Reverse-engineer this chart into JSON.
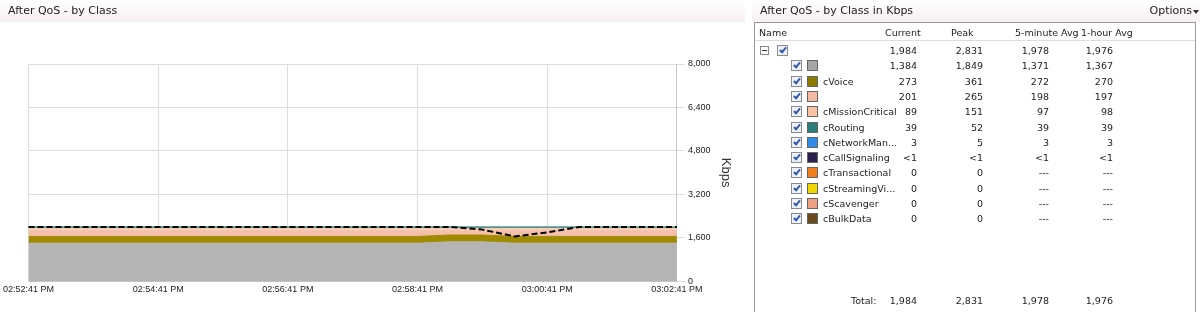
{
  "chart_data": [
    {
      "type": "area",
      "title": "After QoS - by Class",
      "ylabel": "Kbps",
      "stacked": true,
      "grid": true,
      "legend": false,
      "marker": "none",
      "categories": [
        "02:52:41 PM",
        null,
        null,
        null,
        "02:54:41 PM",
        null,
        null,
        null,
        "02:56:41 PM",
        null,
        null,
        null,
        "02:58:41 PM",
        null,
        null,
        null,
        "03:00:41 PM",
        null,
        null,
        null,
        "03:02:41 PM"
      ],
      "ylim": [
        0,
        8000
      ],
      "yticks": [
        {
          "value": 0,
          "label": "0"
        },
        {
          "value": 1600,
          "label": "1,600"
        },
        {
          "value": 3200,
          "label": "3,200"
        },
        {
          "value": 4800,
          "label": "4,800"
        },
        {
          "value": 6400,
          "label": "6,400"
        },
        {
          "value": 8000,
          "label": "8,000"
        }
      ],
      "series": [
        {
          "color": "#b4b4b4",
          "values": [
            1400,
            1400,
            1400,
            1400,
            1400,
            1400,
            1400,
            1400,
            1400,
            1400,
            1400,
            1400,
            1400,
            1450,
            1450,
            1400,
            1400,
            1400,
            1400,
            1400,
            1400
          ]
        },
        {
          "color": "#a08a00",
          "values": [
            250,
            250,
            250,
            250,
            250,
            250,
            250,
            250,
            250,
            250,
            250,
            250,
            250,
            250,
            250,
            250,
            250,
            250,
            250,
            250,
            250
          ]
        },
        {
          "color": "#f4c0aa",
          "values": [
            200,
            200,
            200,
            200,
            200,
            200,
            200,
            200,
            200,
            200,
            200,
            200,
            200,
            150,
            150,
            200,
            200,
            200,
            200,
            200,
            200
          ]
        },
        {
          "color": "#f8cdb3",
          "values": [
            100,
            100,
            100,
            100,
            100,
            100,
            100,
            100,
            100,
            100,
            100,
            100,
            100,
            100,
            100,
            100,
            100,
            100,
            100,
            100,
            100
          ]
        },
        {
          "color": "#2a7d7a",
          "values": [
            50,
            50,
            50,
            50,
            50,
            50,
            50,
            50,
            50,
            50,
            50,
            50,
            50,
            50,
            50,
            50,
            50,
            50,
            50,
            50,
            50
          ]
        },
        {
          "type": "line",
          "line_style": "dashed",
          "color": "#000000",
          "values": [
            2000,
            2000,
            2000,
            2000,
            2000,
            2000,
            2000,
            2000,
            2000,
            2000,
            2000,
            2000,
            2000,
            2000,
            1900,
            1650,
            1800,
            2000,
            2000,
            2000,
            2000
          ]
        }
      ]
    },
    {
      "type": "other",
      "title": "After QoS - by Class in Kbps",
      "categories": [
        null,
        null,
        "cVoice",
        null,
        "cMissionCritical",
        "cRouting",
        "cNetworkMan...",
        "cCallSignaling",
        "cTransactional",
        "cStreamingVi...",
        "cScavenger",
        "cBulkData"
      ],
      "colors": [
        null,
        "#a6a6a6",
        "#8c7a00",
        "#f6b9a3",
        "#f9c2a2",
        "#2a7d7a",
        "#2f8ae8",
        "#2b1f4d",
        "#f07d1a",
        "#f2d600",
        "#ef9f82",
        "#6b4a1a"
      ],
      "annotations": [
        "Options",
        "Name",
        "Current",
        "Peak",
        "5-minute Avg",
        "1-hour Avg",
        "1,984",
        "2,831",
        "1,978",
        "1,976",
        "1,384",
        "1,849",
        "1,371",
        "1,367",
        "273",
        "361",
        "272",
        "270",
        "201",
        "265",
        "198",
        "197",
        "89",
        "151",
        "97",
        "98",
        "39",
        "52",
        "39",
        "39",
        "3",
        "5",
        "3",
        "3",
        "<1",
        "<1",
        "<1",
        "<1",
        "0",
        "0",
        "---",
        "---",
        "0",
        "0",
        "---",
        "---",
        "0",
        "0",
        "---",
        "---",
        "0",
        "0",
        "---",
        "---",
        "Total:",
        "1,984",
        "2,831",
        "1,978",
        "1,976"
      ]
    }
  ]
}
